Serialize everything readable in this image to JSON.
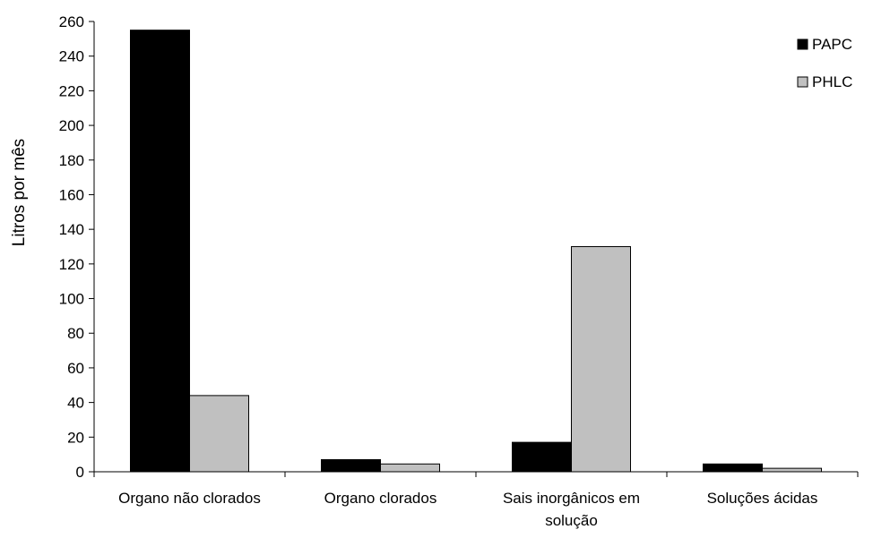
{
  "chart_data": {
    "type": "bar",
    "title": "",
    "xlabel": "",
    "ylabel": "Litros por mês",
    "ylim": [
      0,
      260
    ],
    "yticks": [
      0,
      20,
      40,
      60,
      80,
      100,
      120,
      140,
      160,
      180,
      200,
      220,
      240,
      260
    ],
    "categories": [
      [
        "Organo não clorados"
      ],
      [
        "Organo clorados"
      ],
      [
        "Sais inorgânicos em",
        "solução"
      ],
      [
        "Soluções ácidas"
      ]
    ],
    "series": [
      {
        "name": "PAPC",
        "color": "#000000",
        "values": [
          255,
          7,
          17,
          4.5
        ]
      },
      {
        "name": "PHLC",
        "color": "#c0c0c0",
        "values": [
          44,
          4.5,
          130,
          2
        ]
      }
    ],
    "grid": false,
    "legend_position": "top-right"
  }
}
